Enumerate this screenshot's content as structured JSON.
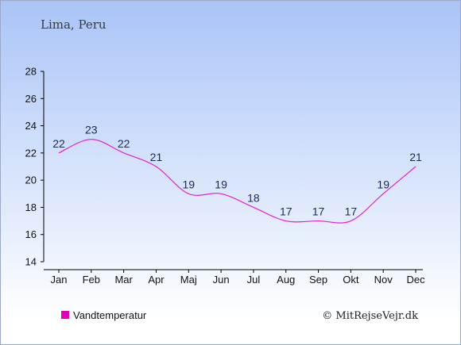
{
  "title": "Lima, Peru",
  "legend_label": "Vandtemperatur",
  "credit": "© MitRejseVejr.dk",
  "colors": {
    "line": "#e020d0",
    "legend_marker": "#e000c0",
    "label_text": "#1a2a55",
    "axis": "#000000",
    "bg_top": "#a9c4f7",
    "bg_bottom": "#ffffff",
    "border": "#9aa9c8"
  },
  "chart_data": {
    "type": "line",
    "categories": [
      "Jan",
      "Feb",
      "Mar",
      "Apr",
      "Maj",
      "Jun",
      "Jul",
      "Aug",
      "Sep",
      "Okt",
      "Nov",
      "Dec"
    ],
    "series": [
      {
        "name": "Vandtemperatur",
        "values": [
          22,
          23,
          22,
          21,
          19,
          19,
          18,
          17,
          17,
          17,
          19,
          21
        ]
      }
    ],
    "ylim": [
      14,
      28
    ],
    "yticks": [
      14,
      16,
      18,
      20,
      22,
      24,
      26,
      28
    ],
    "data_labels": true,
    "grid": false,
    "legend": "bottom-left"
  }
}
